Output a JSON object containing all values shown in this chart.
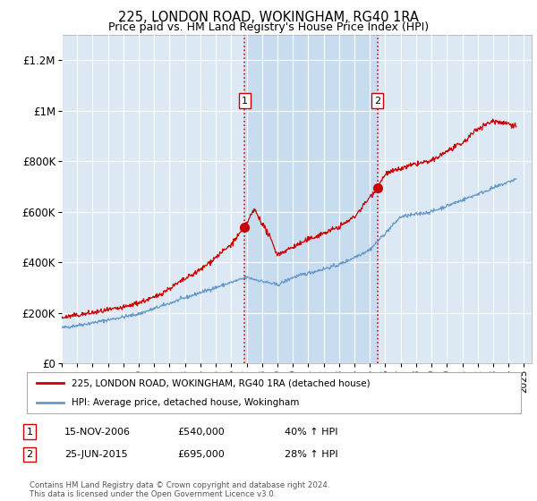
{
  "title": "225, LONDON ROAD, WOKINGHAM, RG40 1RA",
  "subtitle": "Price paid vs. HM Land Registry's House Price Index (HPI)",
  "ylim": [
    0,
    1300000
  ],
  "yticks": [
    0,
    200000,
    400000,
    600000,
    800000,
    1000000,
    1200000
  ],
  "ytick_labels": [
    "£0",
    "£200K",
    "£400K",
    "£600K",
    "£800K",
    "£1M",
    "£1.2M"
  ],
  "background_color": "#ffffff",
  "plot_bg_color": "#dce9f5",
  "grid_color": "#ffffff",
  "line1_color": "#cc0000",
  "line2_color": "#6699cc",
  "transaction1_x": 2006.88,
  "transaction1_y": 540000,
  "transaction1_label": "1",
  "transaction2_x": 2015.48,
  "transaction2_y": 695000,
  "transaction2_label": "2",
  "vline1_x": 2006.88,
  "vline2_x": 2015.48,
  "vline_color": "#cc0000",
  "shade_color": "#c8dcf0",
  "legend_label1": "225, LONDON ROAD, WOKINGHAM, RG40 1RA (detached house)",
  "legend_label2": "HPI: Average price, detached house, Wokingham",
  "table_data": [
    [
      "1",
      "15-NOV-2006",
      "£540,000",
      "40% ↑ HPI"
    ],
    [
      "2",
      "25-JUN-2015",
      "£695,000",
      "28% ↑ HPI"
    ]
  ],
  "footnote": "Contains HM Land Registry data © Crown copyright and database right 2024.\nThis data is licensed under the Open Government Licence v3.0.",
  "xmin": 1995,
  "xmax": 2025.5,
  "hpi_anchors_x": [
    1995,
    1997,
    2000,
    2004,
    2007,
    2009,
    2010,
    2013,
    2015,
    2017,
    2019,
    2022,
    2024.5
  ],
  "hpi_anchors_y": [
    140000,
    160000,
    195000,
    280000,
    340000,
    310000,
    340000,
    390000,
    450000,
    580000,
    600000,
    670000,
    730000
  ],
  "house_anchors_x": [
    1995,
    1997,
    1999,
    2001,
    2004,
    2006,
    2006.88,
    2007.5,
    2008.5,
    2009,
    2010,
    2011,
    2013,
    2014,
    2015.48,
    2016,
    2018,
    2019,
    2020,
    2021,
    2022,
    2023,
    2024,
    2024.5
  ],
  "house_anchors_y": [
    180000,
    200000,
    220000,
    260000,
    370000,
    470000,
    540000,
    610000,
    500000,
    430000,
    460000,
    490000,
    540000,
    580000,
    695000,
    750000,
    790000,
    800000,
    840000,
    870000,
    930000,
    960000,
    950000,
    940000
  ]
}
